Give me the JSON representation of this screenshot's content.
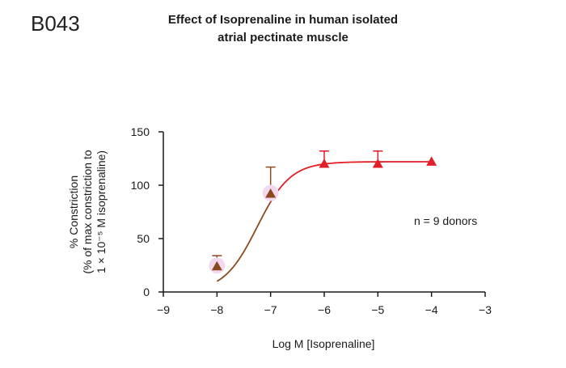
{
  "figure_code": "B043",
  "title_line1": "Effect of Isoprenaline in human isolated",
  "title_line2": "atrial pectinate muscle",
  "colors": {
    "brown": "#8b4a1e",
    "red": "#e21f26",
    "axis": "#1a1a1a",
    "halo": "#f3d9ef"
  },
  "chart_data": {
    "type": "scatter",
    "xlabel": "Log M [Isoprenaline]",
    "ylabel_lines": [
      "% Constriction",
      "(% of max constriction to",
      "1 × 10⁻⁵ M isoprenaline)"
    ],
    "xlim": [
      -9,
      -3
    ],
    "ylim": [
      0,
      150
    ],
    "x_ticks": [
      "−9",
      "−8",
      "−7",
      "−6",
      "−5",
      "−4",
      "−3"
    ],
    "y_ticks": [
      "0",
      "50",
      "100",
      "150"
    ],
    "annotation": "n = 9 donors",
    "series": [
      {
        "x": [
          -8,
          -7,
          -6,
          -5,
          -4
        ],
        "y": [
          24,
          92,
          120,
          120,
          122
        ],
        "error_upper": [
          10,
          25,
          12,
          12,
          0
        ]
      }
    ],
    "curve": {
      "bottom": 0,
      "top": 122,
      "log_ec50": -7.25,
      "hill": 1.4
    },
    "grid": false,
    "legend": "none"
  }
}
